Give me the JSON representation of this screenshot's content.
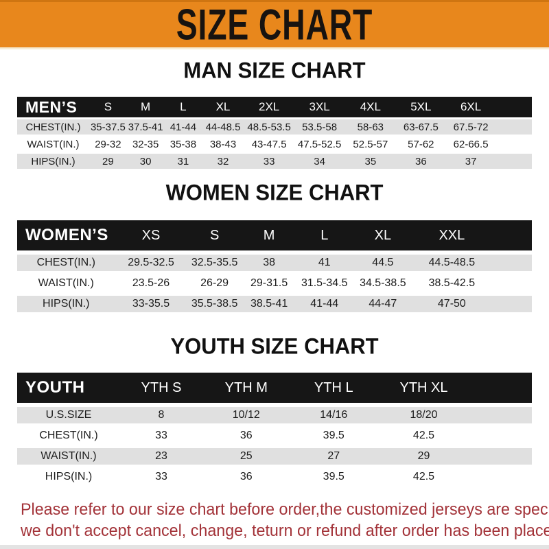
{
  "banner": {
    "title": "SIZE CHART"
  },
  "sections": [
    {
      "heading": "MAN SIZE CHART",
      "table": {
        "label": "MEN’S",
        "columns": [
          "S",
          "M",
          "L",
          "XL",
          "2XL",
          "3XL",
          "4XL",
          "5XL",
          "6XL"
        ],
        "rows": [
          {
            "label": "CHEST(IN.)",
            "values": [
              "35-37.5",
              "37.5-41",
              "41-44",
              "44-48.5",
              "48.5-53.5",
              "53.5-58",
              "58-63",
              "63-67.5",
              "67.5-72"
            ]
          },
          {
            "label": "WAIST(IN.)",
            "values": [
              "29-32",
              "32-35",
              "35-38",
              "38-43",
              "43-47.5",
              "47.5-52.5",
              "52.5-57",
              "57-62",
              "62-66.5"
            ]
          },
          {
            "label": "HIPS(IN.)",
            "values": [
              "29",
              "30",
              "31",
              "32",
              "33",
              "34",
              "35",
              "36",
              "37"
            ]
          }
        ]
      }
    },
    {
      "heading": "WOMEN SIZE CHART",
      "table": {
        "label": "WOMEN’S",
        "columns": [
          "XS",
          "S",
          "M",
          "L",
          "XL",
          "XXL"
        ],
        "rows": [
          {
            "label": "CHEST(IN.)",
            "values": [
              "29.5-32.5",
              "32.5-35.5",
              "38",
              "41",
              "44.5",
              "44.5-48.5"
            ]
          },
          {
            "label": "WAIST(IN.)",
            "values": [
              "23.5-26",
              "26-29",
              "29-31.5",
              "31.5-34.5",
              "34.5-38.5",
              "38.5-42.5"
            ]
          },
          {
            "label": "HIPS(IN.)",
            "values": [
              "33-35.5",
              "35.5-38.5",
              "38.5-41",
              "41-44",
              "44-47",
              "47-50"
            ]
          }
        ]
      }
    },
    {
      "heading": "YOUTH SIZE CHART",
      "table": {
        "label": "YOUTH",
        "columns": [
          "YTH S",
          "YTH M",
          "YTH L",
          "YTH XL"
        ],
        "rows": [
          {
            "label": "U.S.SIZE",
            "values": [
              "8",
              "10/12",
              "14/16",
              "18/20"
            ]
          },
          {
            "label": "CHEST(IN.)",
            "values": [
              "33",
              "36",
              "39.5",
              "42.5"
            ]
          },
          {
            "label": "WAIST(IN.)",
            "values": [
              "23",
              "25",
              "27",
              "29"
            ]
          },
          {
            "label": "HIPS(IN.)",
            "values": [
              "33",
              "36",
              "39.5",
              "42.5"
            ]
          }
        ]
      }
    }
  ],
  "footer": {
    "line1": "Please refer to our size chart before order,the customized jerseys are special products,",
    "line2": "we don't accept cancel, change, teturn or refund after order has been placed!"
  },
  "colors": {
    "banner_bg": "#E8871C",
    "banner_text": "#171310",
    "header_bar_bg": "#161616",
    "header_bar_text": "#FFFFFF",
    "row_alt_bg": "#E0E0E0",
    "row_bg": "#FFFFFF",
    "body_text": "#1C1C1C",
    "footer_text": "#A33339"
  }
}
